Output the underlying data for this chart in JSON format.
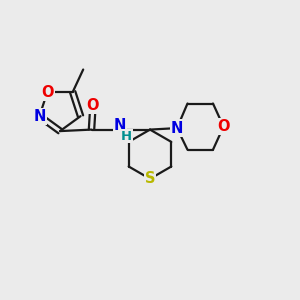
{
  "bg_color": "#ebebeb",
  "bond_color": "#1a1a1a",
  "bond_width": 1.6,
  "atom_colors": {
    "N": "#0000e0",
    "O": "#ee0000",
    "S": "#b8b800",
    "H": "#009090",
    "C": "#1a1a1a"
  },
  "font_size": 10.5,
  "bold": true
}
